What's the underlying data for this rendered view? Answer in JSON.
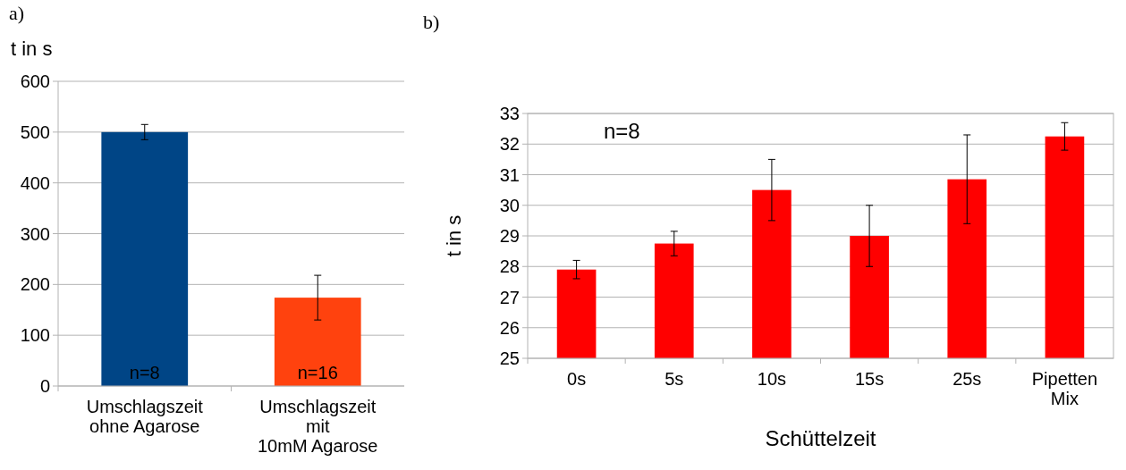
{
  "chart_data": [
    {
      "type": "bar",
      "title": "a)",
      "ylabel": "t in s",
      "categories": [
        "Umschlagszeit\nohne Agarose",
        "Umschlagszeit\nmit\n10mM Agarose"
      ],
      "values": [
        500,
        174
      ],
      "colors": [
        "#004586",
        "#ff420e"
      ],
      "errors": [
        15,
        44
      ],
      "ylim": [
        0,
        600
      ],
      "yticks": [
        0,
        100,
        200,
        300,
        400,
        500,
        600
      ],
      "grid": "y",
      "annotations": [
        "n=8",
        "n=16"
      ]
    },
    {
      "type": "bar",
      "title": "b)",
      "ylabel": "t in s",
      "xlabel": "Schüttelzeit",
      "categories": [
        "0s",
        "5s",
        "10s",
        "15s",
        "25s",
        "Pipetten\nMix"
      ],
      "values": [
        27.9,
        28.75,
        30.5,
        29.0,
        30.85,
        32.25
      ],
      "color": "#ff0000",
      "errors": [
        0.3,
        0.4,
        1,
        1,
        1.45,
        0.45
      ],
      "ylim": [
        25,
        33
      ],
      "yticks": [
        25,
        26,
        27,
        28,
        29,
        30,
        31,
        32,
        33
      ],
      "grid": "y",
      "annotations": [
        "n=8"
      ]
    }
  ]
}
